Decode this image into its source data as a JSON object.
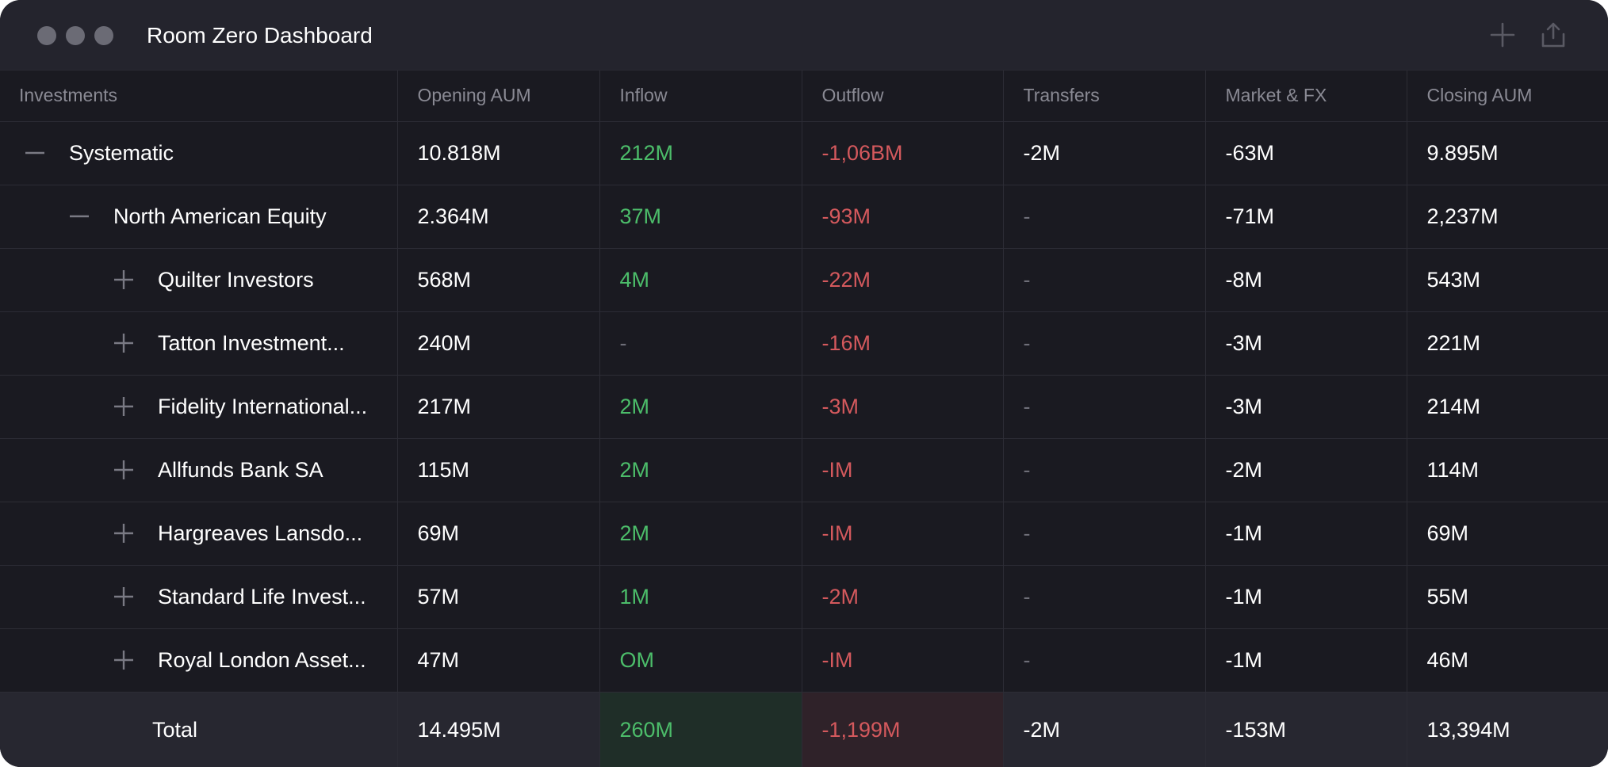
{
  "window": {
    "title": "Room Zero Dashboard",
    "controls": [
      "close",
      "minimize",
      "zoom"
    ],
    "toolbar_icons": [
      "plus-icon",
      "share-icon"
    ]
  },
  "colors": {
    "positive": "#4cbd6a",
    "negative": "#d4595d",
    "muted": "#6e6e78",
    "background": "#1a1a21"
  },
  "table": {
    "headers": [
      "Investments",
      "Opening AUM",
      "Inflow",
      "Outflow",
      "Transfers",
      "Market & FX",
      "Closing AUM"
    ],
    "rows": [
      {
        "name": "Systematic",
        "level": 0,
        "toggle": "collapse",
        "opening": "10.818M",
        "inflow": "212M",
        "outflow": "-1,06BM",
        "transfers": "-2M",
        "market": "-63M",
        "closing": "9.895M"
      },
      {
        "name": "North American Equity",
        "level": 1,
        "toggle": "collapse",
        "opening": "2.364M",
        "inflow": "37M",
        "outflow": "-93M",
        "transfers": "-",
        "market": "-71M",
        "closing": "2,237M"
      },
      {
        "name": "Quilter Investors",
        "level": 2,
        "toggle": "expand",
        "opening": "568M",
        "inflow": "4M",
        "outflow": "-22M",
        "transfers": "-",
        "market": "-8M",
        "closing": "543M"
      },
      {
        "name": "Tatton Investment...",
        "level": 2,
        "toggle": "expand",
        "opening": "240M",
        "inflow": "-",
        "outflow": "-16M",
        "transfers": "-",
        "market": "-3M",
        "closing": "221M"
      },
      {
        "name": "Fidelity International...",
        "level": 2,
        "toggle": "expand",
        "opening": "217M",
        "inflow": "2M",
        "outflow": "-3M",
        "transfers": "-",
        "market": "-3M",
        "closing": "214M"
      },
      {
        "name": "Allfunds Bank SA",
        "level": 2,
        "toggle": "expand",
        "opening": "115M",
        "inflow": "2M",
        "outflow": "-IM",
        "transfers": "-",
        "market": "-2M",
        "closing": "114M"
      },
      {
        "name": "Hargreaves Lansdo...",
        "level": 2,
        "toggle": "expand",
        "opening": "69M",
        "inflow": "2M",
        "outflow": "-IM",
        "transfers": "-",
        "market": "-1M",
        "closing": "69M"
      },
      {
        "name": "Standard Life Invest...",
        "level": 2,
        "toggle": "expand",
        "opening": "57M",
        "inflow": "1M",
        "outflow": "-2M",
        "transfers": "-",
        "market": "-1M",
        "closing": "55M"
      },
      {
        "name": "Royal London Asset...",
        "level": 2,
        "toggle": "expand",
        "opening": "47M",
        "inflow": "OM",
        "outflow": "-IM",
        "transfers": "-",
        "market": "-1M",
        "closing": "46M"
      }
    ],
    "total": {
      "name": "Total",
      "opening": "14.495M",
      "inflow": "260M",
      "outflow": "-1,199M",
      "transfers": "-2M",
      "market": "-153M",
      "closing": "13,394M"
    }
  }
}
